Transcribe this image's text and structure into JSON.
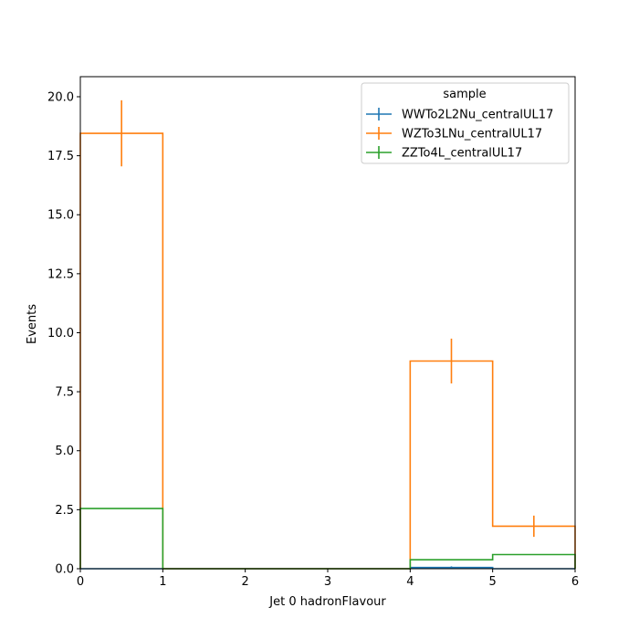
{
  "chart_data": {
    "type": "step-histogram",
    "xlabel": "Jet 0 hadronFlavour",
    "ylabel": "Events",
    "xlim": [
      0,
      6
    ],
    "ylim": [
      0,
      20.85
    ],
    "xticks": [
      0,
      1,
      2,
      3,
      4,
      5,
      6
    ],
    "yticks": [
      0.0,
      2.5,
      5.0,
      7.5,
      10.0,
      12.5,
      15.0,
      17.5,
      20.0
    ],
    "xtick_labels": [
      "0",
      "1",
      "2",
      "3",
      "4",
      "5",
      "6"
    ],
    "ytick_labels": [
      "0.0",
      "2.5",
      "5.0",
      "7.5",
      "10.0",
      "12.5",
      "15.0",
      "17.5",
      "20.0"
    ],
    "bin_edges": [
      0,
      1,
      2,
      3,
      4,
      5,
      6
    ],
    "legend": {
      "title": "sample",
      "position": "upper right"
    },
    "series": [
      {
        "name": "WWTo2L2Nu_centralUL17",
        "color": "#1f77b4",
        "values": [
          0.0,
          0.0,
          0.0,
          0.0,
          0.05,
          0.0
        ],
        "errors": [
          0.0,
          0.0,
          0.0,
          0.0,
          0.05,
          0.0
        ]
      },
      {
        "name": "WZTo3LNu_centralUL17",
        "color": "#ff7f0e",
        "values": [
          18.45,
          0.0,
          0.0,
          0.0,
          8.8,
          1.8
        ],
        "errors": [
          1.4,
          0.0,
          0.0,
          0.0,
          0.95,
          0.45
        ]
      },
      {
        "name": "ZZTo4L_centralUL17",
        "color": "#2ca02c",
        "values": [
          2.55,
          0.0,
          0.0,
          0.0,
          0.38,
          0.6
        ],
        "errors": [
          0.0,
          0.0,
          0.0,
          0.0,
          0.0,
          0.0
        ]
      }
    ]
  }
}
